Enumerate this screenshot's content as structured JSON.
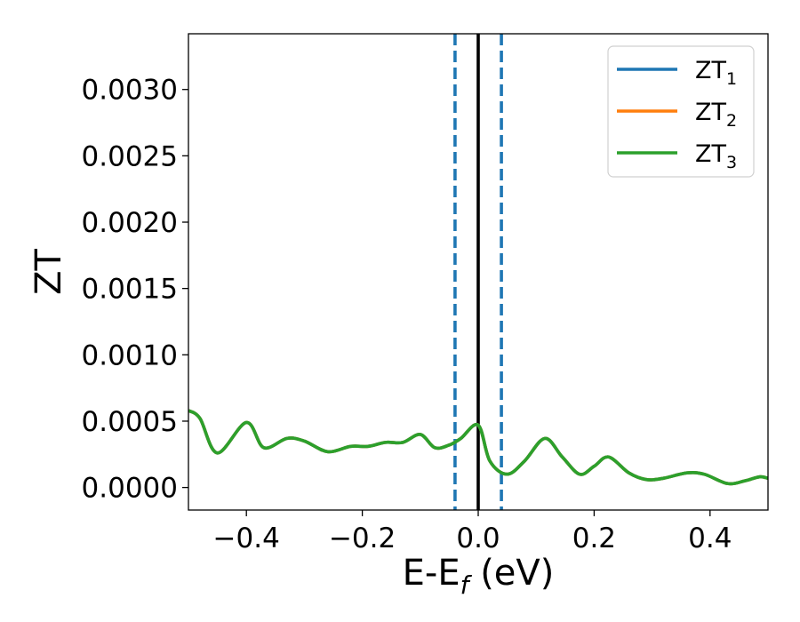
{
  "chart_data": {
    "type": "line",
    "title": "",
    "xlabel": "E-E",
    "xlabel_subscript": "f",
    "xlabel_unit": "(eV)",
    "ylabel": "ZT",
    "xlim": [
      -0.5,
      0.5
    ],
    "ylim": [
      -0.00017,
      0.00342
    ],
    "xticks": [
      -0.4,
      -0.2,
      0.0,
      0.2,
      0.4
    ],
    "xtick_labels": [
      "−0.4",
      "−0.2",
      "0.0",
      "0.2",
      "0.4"
    ],
    "yticks": [
      0.0,
      0.0005,
      0.001,
      0.0015,
      0.002,
      0.0025,
      0.003
    ],
    "ytick_labels": [
      "0.0000",
      "0.0005",
      "0.0010",
      "0.0015",
      "0.0020",
      "0.0025",
      "0.0030"
    ],
    "grid": false,
    "legend_position": "top-right",
    "vlines": [
      {
        "x": 0.0,
        "style": "solid",
        "color": "#000000"
      },
      {
        "x": -0.04,
        "style": "dashed",
        "color": "#1f77b4"
      },
      {
        "x": 0.04,
        "style": "dashed",
        "color": "#1f77b4"
      }
    ],
    "series": [
      {
        "name": "ZT",
        "sub": "1",
        "color": "#1f77b4",
        "x": [
          -0.5,
          -0.48,
          -0.45,
          -0.4,
          -0.37,
          -0.33,
          -0.3,
          -0.26,
          -0.22,
          -0.19,
          -0.16,
          -0.13,
          -0.1,
          -0.075,
          -0.05,
          -0.03,
          0.0,
          0.02,
          0.05,
          0.08,
          0.115,
          0.145,
          0.175,
          0.2,
          0.225,
          0.26,
          0.29,
          0.32,
          0.36,
          0.39,
          0.43,
          0.46,
          0.485,
          0.5
        ],
        "y": [
          0.00058,
          0.00052,
          0.00026,
          0.00049,
          0.0003,
          0.00037,
          0.00035,
          0.00027,
          0.00031,
          0.00031,
          0.00034,
          0.00034,
          0.0004,
          0.0003,
          0.00032,
          0.00037,
          0.00047,
          0.0002,
          0.0001,
          0.0002,
          0.00037,
          0.00023,
          0.0001,
          0.00016,
          0.00023,
          0.00011,
          6e-05,
          7e-05,
          0.00011,
          0.0001,
          3e-05,
          5e-05,
          8e-05,
          7e-05
        ]
      },
      {
        "name": "ZT",
        "sub": "2",
        "color": "#ff7f0e",
        "x": [
          -0.5,
          -0.48,
          -0.45,
          -0.4,
          -0.37,
          -0.33,
          -0.3,
          -0.26,
          -0.22,
          -0.19,
          -0.16,
          -0.13,
          -0.1,
          -0.075,
          -0.05,
          -0.03,
          0.0,
          0.02,
          0.05,
          0.08,
          0.115,
          0.145,
          0.175,
          0.2,
          0.225,
          0.26,
          0.29,
          0.32,
          0.36,
          0.39,
          0.43,
          0.46,
          0.485,
          0.5
        ],
        "y": [
          0.00058,
          0.00052,
          0.00026,
          0.00049,
          0.0003,
          0.00037,
          0.00035,
          0.00027,
          0.00031,
          0.00031,
          0.00034,
          0.00034,
          0.0004,
          0.0003,
          0.00032,
          0.00037,
          0.00047,
          0.0002,
          0.0001,
          0.0002,
          0.00037,
          0.00023,
          0.0001,
          0.00016,
          0.00023,
          0.00011,
          6e-05,
          7e-05,
          0.00011,
          0.0001,
          3e-05,
          5e-05,
          8e-05,
          7e-05
        ]
      },
      {
        "name": "ZT",
        "sub": "3",
        "color": "#2ca02c",
        "x": [
          -0.5,
          -0.48,
          -0.45,
          -0.4,
          -0.37,
          -0.33,
          -0.3,
          -0.26,
          -0.22,
          -0.19,
          -0.16,
          -0.13,
          -0.1,
          -0.075,
          -0.05,
          -0.03,
          0.0,
          0.02,
          0.05,
          0.08,
          0.115,
          0.145,
          0.175,
          0.2,
          0.225,
          0.26,
          0.29,
          0.32,
          0.36,
          0.39,
          0.43,
          0.46,
          0.485,
          0.5
        ],
        "y": [
          0.00058,
          0.00052,
          0.00026,
          0.00049,
          0.0003,
          0.00037,
          0.00035,
          0.00027,
          0.00031,
          0.00031,
          0.00034,
          0.00034,
          0.0004,
          0.0003,
          0.00032,
          0.00037,
          0.00047,
          0.0002,
          0.0001,
          0.0002,
          0.00037,
          0.00023,
          0.0001,
          0.00016,
          0.00023,
          0.00011,
          6e-05,
          7e-05,
          0.00011,
          0.0001,
          3e-05,
          5e-05,
          8e-05,
          7e-05
        ]
      }
    ]
  }
}
